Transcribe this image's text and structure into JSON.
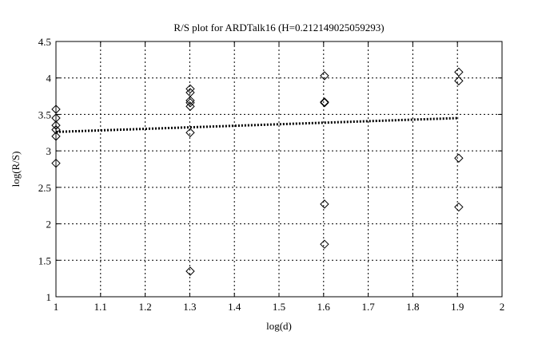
{
  "chart_data": {
    "type": "scatter",
    "title": "R/S plot for ARDTalk16 (H=0.212149025059293)",
    "xlabel": "log(d)",
    "ylabel": "log(R/S)",
    "xlim": [
      1,
      2
    ],
    "ylim": [
      1,
      4.5
    ],
    "xticks": [
      "1",
      "1.1",
      "1.2",
      "1.3",
      "1.4",
      "1.5",
      "1.6",
      "1.7",
      "1.8",
      "1.9",
      "2"
    ],
    "yticks": [
      "1",
      "1.5",
      "2",
      "2.5",
      "3",
      "3.5",
      "4",
      "4.5"
    ],
    "grid": true,
    "marker": "diamond",
    "points": [
      {
        "x": 1,
        "y": 3.57
      },
      {
        "x": 1,
        "y": 3.45
      },
      {
        "x": 1,
        "y": 3.35
      },
      {
        "x": 1,
        "y": 3.29
      },
      {
        "x": 1,
        "y": 3.2
      },
      {
        "x": 1,
        "y": 2.83
      },
      {
        "x": 1.301,
        "y": 3.85
      },
      {
        "x": 1.301,
        "y": 3.8
      },
      {
        "x": 1.301,
        "y": 3.69
      },
      {
        "x": 1.301,
        "y": 3.66
      },
      {
        "x": 1.301,
        "y": 3.61
      },
      {
        "x": 1.301,
        "y": 3.25
      },
      {
        "x": 1.301,
        "y": 1.35
      },
      {
        "x": 1.602,
        "y": 4.03
      },
      {
        "x": 1.602,
        "y": 3.67
      },
      {
        "x": 1.602,
        "y": 3.66
      },
      {
        "x": 1.602,
        "y": 2.27
      },
      {
        "x": 1.602,
        "y": 1.72
      },
      {
        "x": 1.903,
        "y": 4.08
      },
      {
        "x": 1.903,
        "y": 3.96
      },
      {
        "x": 1.903,
        "y": 2.9
      },
      {
        "x": 1.903,
        "y": 2.23
      }
    ],
    "fit_line": {
      "slope": 0.212149025059293,
      "x": [
        1,
        1.903
      ],
      "y": [
        3.26,
        3.45
      ],
      "style": "dotted"
    }
  }
}
